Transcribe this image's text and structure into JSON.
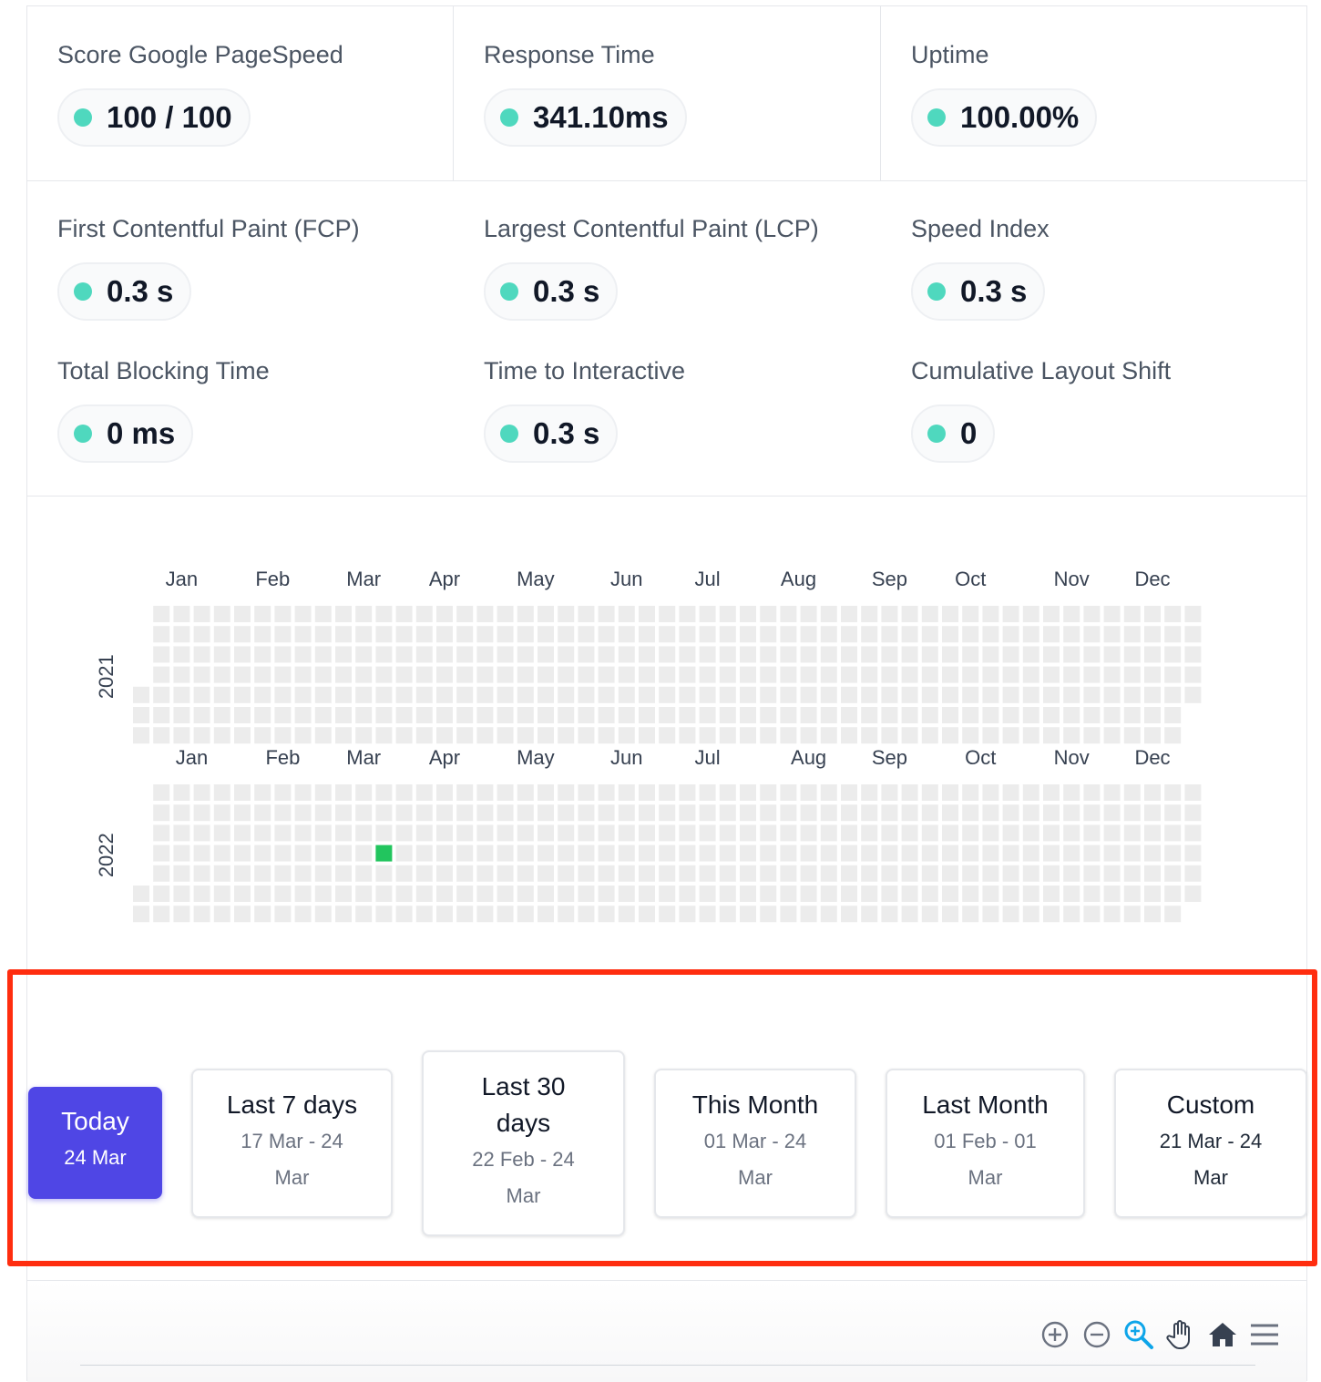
{
  "top_metrics": [
    {
      "label": "Score Google PageSpeed",
      "value": "100 / 100"
    },
    {
      "label": "Response Time",
      "value": "341.10ms"
    },
    {
      "label": "Uptime",
      "value": "100.00%"
    }
  ],
  "vitals": [
    {
      "label": "First Contentful Paint (FCP)",
      "value": "0.3 s"
    },
    {
      "label": "Largest Contentful Paint (LCP)",
      "value": "0.3 s"
    },
    {
      "label": "Speed Index",
      "value": "0.3 s"
    },
    {
      "label": "Total Blocking Time",
      "value": "0 ms"
    },
    {
      "label": "Time to Interactive",
      "value": "0.3 s"
    },
    {
      "label": "Cumulative Layout Shift",
      "value": "0"
    }
  ],
  "heatmap": {
    "years": [
      {
        "year": "2021",
        "months": [
          "Jan",
          "Feb",
          "Mar",
          "Apr",
          "May",
          "Jun",
          "Jul",
          "Aug",
          "Sep",
          "Oct",
          "Nov",
          "Dec"
        ]
      },
      {
        "year": "2022",
        "months": [
          "Jan",
          "Feb",
          "Mar",
          "Apr",
          "May",
          "Jun",
          "Jul",
          "Aug",
          "Sep",
          "Oct",
          "Nov",
          "Dec"
        ]
      }
    ],
    "active_days": [
      {
        "year": "2022",
        "date": "24 Mar"
      }
    ],
    "colors": {
      "empty": "#ececec",
      "active": "#22c55e"
    }
  },
  "date_ranges": [
    {
      "title": "Today",
      "dates": "24 Mar",
      "active": true
    },
    {
      "title": "Last 7 days",
      "dates": "17 Mar - 24 Mar"
    },
    {
      "title": "Last 30 days",
      "dates": "22 Feb - 24 Mar"
    },
    {
      "title": "This Month",
      "dates": "01 Mar - 24 Mar"
    },
    {
      "title": "Last Month",
      "dates": "01 Feb - 01 Mar"
    },
    {
      "title": "Custom",
      "dates": "21 Mar - 24 Mar"
    }
  ],
  "toolbar": [
    "zoom-in-icon",
    "zoom-out-icon",
    "magnifier-icon",
    "pan-hand-icon",
    "home-icon",
    "menu-icon"
  ],
  "colors": {
    "accent": "#4f46e5",
    "status_dot": "#4fd8be",
    "highlight": "#ff2d0f"
  }
}
